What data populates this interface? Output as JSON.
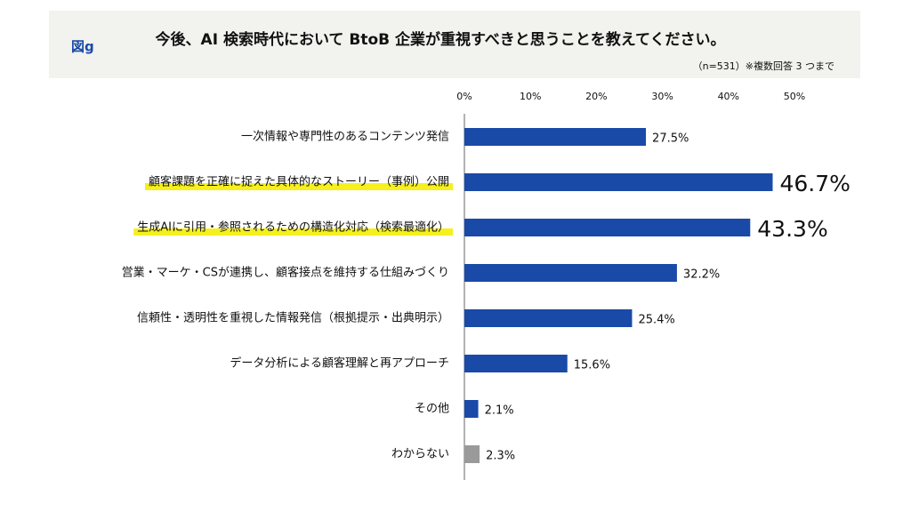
{
  "chart_data": {
    "type": "hbar",
    "figure_label": "図g",
    "title": "今後、AI 検索時代において BtoB 企業が重視すべきと思うことを教えてください。",
    "note": "（n=531）※複数回答 3 つまで",
    "categories": [
      "一次情報や専門性のあるコンテンツ発信",
      "顧客課題を正確に捉えた具体的なストーリー（事例）公開",
      "生成AIに引用・参照されるための構造化対応（検索最適化）",
      "営業・マーケ・CSが連携し、顧客接点を維持する仕組みづくり",
      "信頼性・透明性を重視した情報発信（根拠提示・出典明示）",
      "データ分析による顧客理解と再アプローチ",
      "その他",
      "わからない"
    ],
    "values": [
      27.5,
      46.7,
      43.3,
      32.2,
      25.4,
      15.6,
      2.1,
      2.3
    ],
    "value_labels": [
      "27.5%",
      "46.7%",
      "43.3%",
      "32.2%",
      "25.4%",
      "15.6%",
      "2.1%",
      "2.3%"
    ],
    "colors": [
      "#1a4aa8",
      "#1a4aa8",
      "#1a4aa8",
      "#1a4aa8",
      "#1a4aa8",
      "#1a4aa8",
      "#1a4aa8",
      "#9a9a9a"
    ],
    "highlight": [
      false,
      true,
      true,
      false,
      false,
      false,
      false,
      false
    ],
    "highlight_color": "#f5f01e",
    "xlim": [
      0,
      50
    ],
    "xticks": [
      {
        "value": 0,
        "label": "0%"
      },
      {
        "value": 10,
        "label": "10%"
      },
      {
        "value": 20,
        "label": "20%"
      },
      {
        "value": 30,
        "label": "30%"
      },
      {
        "value": 40,
        "label": "40%"
      },
      {
        "value": 50,
        "label": "50%"
      }
    ]
  }
}
